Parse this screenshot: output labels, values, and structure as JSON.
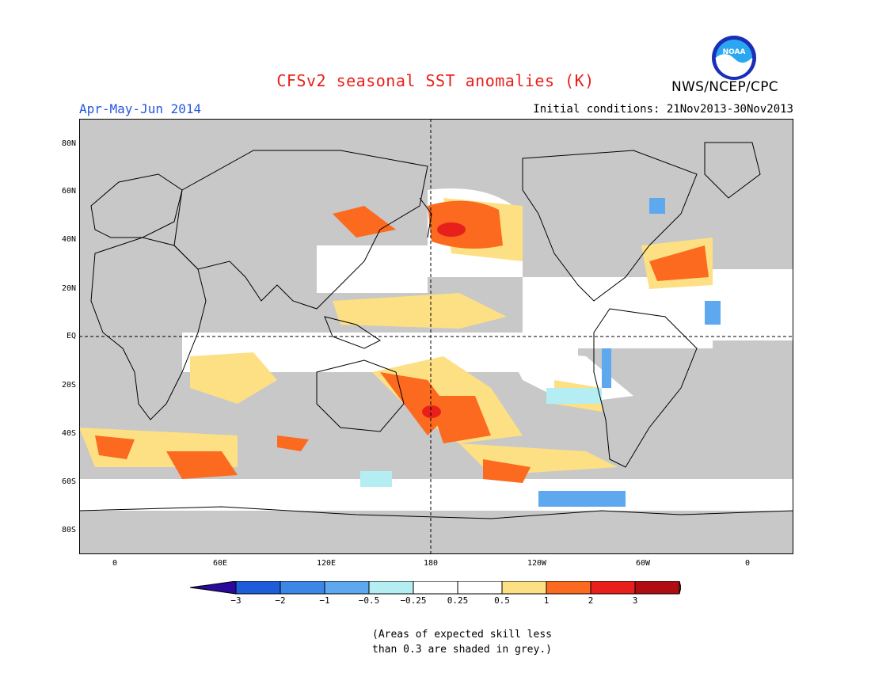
{
  "title": "CFSv2 seasonal SST anomalies (K)",
  "organization": "NWS/NCEP/CPC",
  "logo_text": "NOAA",
  "season": "Apr-May-Jun 2014",
  "initial_conditions": "Initial conditions: 21Nov2013-30Nov2013",
  "map": {
    "lat_labels": [
      "80N",
      "60N",
      "40N",
      "20N",
      "EQ",
      "20S",
      "40S",
      "60S",
      "80S"
    ],
    "lon_labels": [
      "0",
      "60E",
      "120E",
      "180",
      "120W",
      "60W",
      "0"
    ],
    "background_color": "#c8c8c8",
    "land_color": "#c8c8c8"
  },
  "colorbar": {
    "colors": [
      "#2a0a9a",
      "#1f5cd9",
      "#3c86e8",
      "#5ea8f0",
      "#b4eef2",
      "#ffffff",
      "#ffffff",
      "#fde084",
      "#fb6a1e",
      "#e8201b",
      "#b00d10",
      "#7a4a34"
    ],
    "labels": [
      "−3",
      "−2",
      "−1",
      "−0.5",
      "−0.25",
      "0.25",
      "0.5",
      "1",
      "2",
      "3"
    ]
  },
  "skill_note_line1": "(Areas of expected skill less",
  "skill_note_line2": "than 0.3 are shaded in grey.)"
}
